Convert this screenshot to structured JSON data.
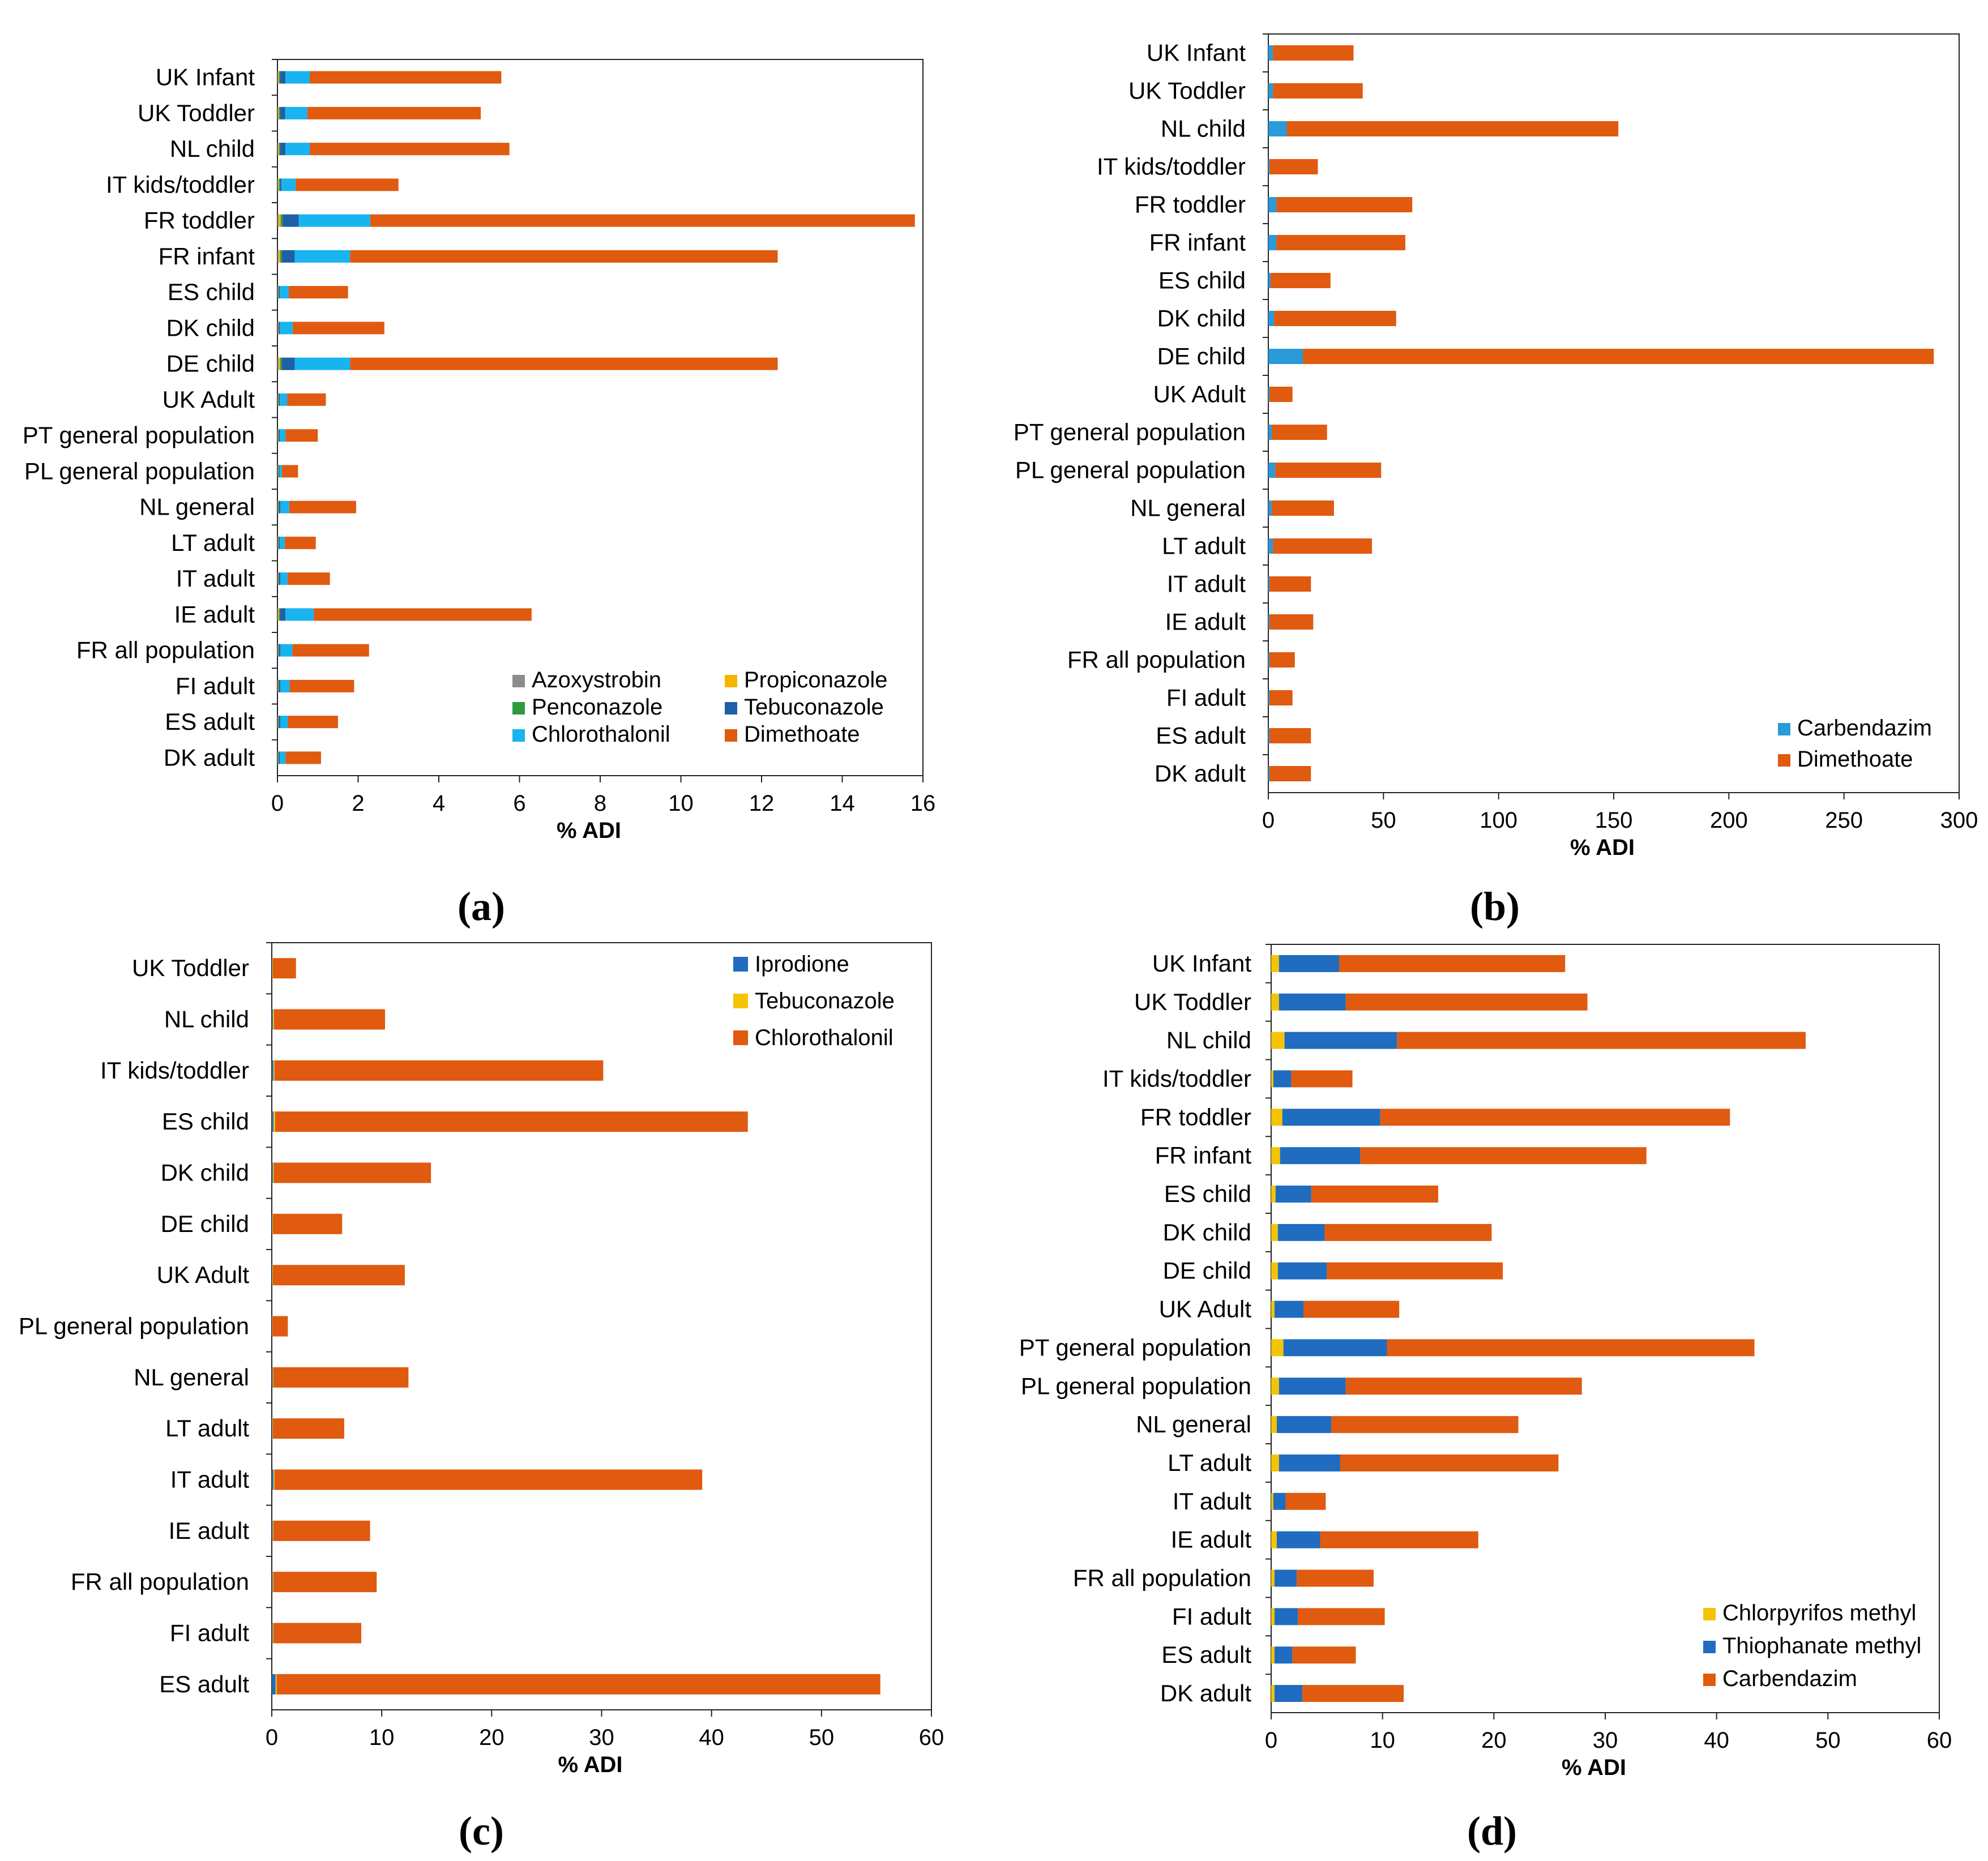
{
  "colors": {
    "Azoxystrobin": "#8c8c8c",
    "Propiconazole": "#f5b400",
    "Penconazole": "#2e9a3c",
    "Tebuconazole_a": "#1f5fa8",
    "Chlorothalonil_a": "#18b4f0",
    "Dimethoate": "#e05a0f",
    "Carbendazim_b": "#2a9ad8",
    "Iprodione": "#1f6cc0",
    "Tebuconazole_c": "#f5c400",
    "Chlorothalonil_c": "#e05a0f",
    "Chlorpyrifos methyl": "#f5c400",
    "Thiophanate methyl": "#1f6cc0",
    "Carbendazim_d": "#e05a0f"
  },
  "chart_data": [
    {
      "id": "a",
      "panel_label": "(a)",
      "type": "bar",
      "orientation": "horizontal",
      "stacked": true,
      "xlabel": "% ADI",
      "xlim": [
        0,
        16
      ],
      "xticks": [
        0,
        2,
        4,
        6,
        8,
        10,
        12,
        14,
        16
      ],
      "legend_position": "bottom-right",
      "legend_columns": 2,
      "categories": [
        "UK Infant",
        "UK Toddler",
        "NL child",
        "IT kids/toddler",
        "FR toddler",
        "FR infant",
        "ES child",
        "DK child",
        "DE child",
        "UK Adult",
        "PT general population",
        "PL  general population",
        "NL general",
        "LT adult",
        "IT adult",
        "IE adult",
        "FR all population",
        "FI  adult",
        "ES adult",
        "DK adult"
      ],
      "series": [
        {
          "name": "Azoxystrobin",
          "color_key": "Azoxystrobin",
          "values": [
            0.02,
            0.02,
            0.02,
            0.02,
            0.03,
            0.03,
            0.01,
            0.01,
            0.03,
            0.01,
            0.01,
            0.01,
            0.01,
            0.01,
            0.01,
            0.02,
            0.01,
            0.01,
            0.01,
            0.01
          ]
        },
        {
          "name": "Propiconazole",
          "color_key": "Propiconazole",
          "values": [
            0.02,
            0.02,
            0.02,
            0.02,
            0.05,
            0.04,
            0.01,
            0.01,
            0.04,
            0.01,
            0.01,
            0.01,
            0.01,
            0.01,
            0.01,
            0.02,
            0.01,
            0.01,
            0.01,
            0.01
          ]
        },
        {
          "name": "Penconazole",
          "color_key": "Penconazole",
          "values": [
            0.03,
            0.03,
            0.03,
            0.02,
            0.05,
            0.04,
            0.01,
            0.01,
            0.04,
            0.01,
            0.01,
            0.01,
            0.01,
            0.01,
            0.01,
            0.03,
            0.01,
            0.01,
            0.01,
            0.01
          ]
        },
        {
          "name": "Tebuconazole",
          "color_key": "Tebuconazole_a",
          "values": [
            0.13,
            0.12,
            0.13,
            0.04,
            0.4,
            0.32,
            0.03,
            0.03,
            0.32,
            0.03,
            0.03,
            0.02,
            0.04,
            0.03,
            0.04,
            0.13,
            0.04,
            0.04,
            0.04,
            0.03
          ]
        },
        {
          "name": "Chlorothalonil",
          "color_key": "Chlorothalonil_a",
          "values": [
            0.6,
            0.55,
            0.6,
            0.35,
            1.77,
            1.37,
            0.22,
            0.32,
            1.37,
            0.18,
            0.14,
            0.06,
            0.22,
            0.12,
            0.18,
            0.7,
            0.3,
            0.23,
            0.19,
            0.14
          ]
        },
        {
          "name": "Dimethoate",
          "color_key": "Dimethoate",
          "values": [
            4.75,
            4.3,
            4.95,
            2.55,
            13.5,
            10.6,
            1.47,
            2.27,
            10.6,
            0.96,
            0.8,
            0.4,
            1.66,
            0.77,
            1.05,
            5.4,
            1.9,
            1.6,
            1.24,
            0.88
          ]
        }
      ]
    },
    {
      "id": "b",
      "panel_label": "(b)",
      "type": "bar",
      "orientation": "horizontal",
      "stacked": true,
      "xlabel": "% ADI",
      "xlim": [
        0,
        300
      ],
      "xticks": [
        0,
        50,
        100,
        150,
        200,
        250,
        300
      ],
      "legend_position": "bottom-right",
      "legend_columns": 1,
      "categories": [
        "UK Infant",
        "UK Toddler",
        "NL child",
        "IT kids/toddler",
        "FR toddler",
        "FR infant",
        "ES child",
        "DK child",
        "DE child",
        "UK Adult",
        "PT general population",
        "PL  general population",
        "NL general",
        "LT adult",
        "IT adult",
        "IE adult",
        "FR all population",
        "FI  adult",
        "ES adult",
        "DK adult"
      ],
      "series": [
        {
          "name": "Carbendazim",
          "color_key": "Carbendazim_b",
          "values": [
            2,
            2,
            8,
            0.5,
            3.5,
            3.5,
            1,
            2.5,
            15,
            0.5,
            1.5,
            3,
            1.5,
            2,
            0.5,
            0.5,
            0.5,
            0.5,
            0.5,
            0.5
          ]
        },
        {
          "name": "Dimethoate",
          "color_key": "Dimethoate",
          "values": [
            35,
            39,
            144,
            21,
            59,
            56,
            26,
            53,
            274,
            10,
            24,
            46,
            27,
            43,
            18,
            19,
            11,
            10,
            18,
            18
          ]
        }
      ]
    },
    {
      "id": "c",
      "panel_label": "(c)",
      "type": "bar",
      "orientation": "horizontal",
      "stacked": true,
      "xlabel": "% ADI",
      "xlim": [
        0,
        60
      ],
      "xticks": [
        0,
        10,
        20,
        30,
        40,
        50,
        60
      ],
      "legend_position": "top-right",
      "legend_columns": 1,
      "categories": [
        "UK Toddler",
        "NL child",
        "IT kids/toddler",
        "ES child",
        "DK child",
        "DE child",
        "UK Adult",
        "PL  general population",
        "NL general",
        "LT adult",
        "IT adult",
        "IE adult",
        "FR all population",
        "FI  adult",
        "ES adult"
      ],
      "series": [
        {
          "name": "Iprodione",
          "color_key": "Iprodione",
          "values": [
            0.05,
            0.1,
            0.15,
            0.15,
            0.1,
            0.05,
            0.05,
            0.03,
            0.08,
            0.05,
            0.15,
            0.08,
            0.08,
            0.08,
            0.35
          ]
        },
        {
          "name": "Tebuconazole",
          "color_key": "Tebuconazole_c",
          "values": [
            0.05,
            0.1,
            0.1,
            0.15,
            0.08,
            0.05,
            0.05,
            0.03,
            0.05,
            0.04,
            0.1,
            0.06,
            0.06,
            0.06,
            0.1
          ]
        },
        {
          "name": "Chlorothalonil",
          "color_key": "Chlorothalonil_c",
          "values": [
            2.1,
            10.1,
            29.9,
            43.0,
            14.3,
            6.3,
            12.0,
            1.4,
            12.3,
            6.5,
            38.9,
            8.8,
            9.4,
            8.0,
            54.9
          ]
        }
      ]
    },
    {
      "id": "d",
      "panel_label": "(d)",
      "type": "bar",
      "orientation": "horizontal",
      "stacked": true,
      "xlabel": "% ADI",
      "xlim": [
        0,
        60
      ],
      "xticks": [
        0,
        10,
        20,
        30,
        40,
        50,
        60
      ],
      "legend_position": "bottom-right",
      "legend_columns": 1,
      "categories": [
        "UK Infant",
        "UK Toddler",
        "NL child",
        "IT kids/toddler",
        "FR toddler",
        "FR infant",
        "ES child",
        "DK child",
        "DE child",
        "UK Adult",
        "PT general population",
        "PL  general population",
        "NL general",
        "LT adult",
        "IT adult",
        "IE adult",
        "FR all population",
        "FI  adult",
        "ES adult",
        "DK adult"
      ],
      "series": [
        {
          "name": "Chlorpyrifos methyl",
          "color_key": "Chlorpyrifos methyl",
          "values": [
            0.7,
            0.7,
            1.2,
            0.2,
            1.0,
            0.8,
            0.4,
            0.6,
            0.6,
            0.3,
            1.1,
            0.7,
            0.5,
            0.7,
            0.2,
            0.5,
            0.3,
            0.3,
            0.3,
            0.3
          ]
        },
        {
          "name": "Thiophanate methyl",
          "color_key": "Thiophanate methyl",
          "values": [
            5.4,
            6.0,
            10.1,
            1.6,
            8.8,
            7.2,
            3.2,
            4.2,
            4.4,
            2.6,
            9.3,
            6.0,
            4.9,
            5.5,
            1.1,
            3.9,
            2.0,
            2.1,
            1.6,
            2.5
          ]
        },
        {
          "name": "Carbendazim",
          "color_key": "Carbendazim_d",
          "values": [
            20.3,
            21.7,
            36.7,
            5.5,
            31.4,
            25.7,
            11.4,
            15.0,
            15.8,
            8.6,
            33.0,
            21.2,
            16.8,
            19.6,
            3.6,
            14.2,
            6.9,
            7.8,
            5.7,
            9.1
          ]
        }
      ]
    }
  ]
}
